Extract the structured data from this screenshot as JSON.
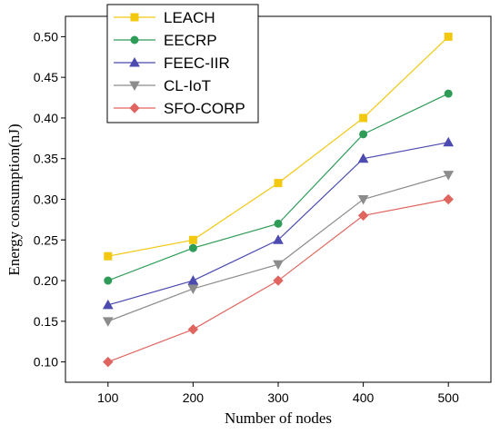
{
  "chart_data": {
    "type": "line",
    "xlabel": "Number of nodes",
    "ylabel": "Energy consumption(nJ)",
    "x": [
      100,
      200,
      300,
      400,
      500
    ],
    "xlim": [
      50,
      550
    ],
    "ylim": [
      0.075,
      0.525
    ],
    "xticks": [
      100,
      200,
      300,
      400,
      500
    ],
    "yticks": [
      0.1,
      0.15,
      0.2,
      0.25,
      0.3,
      0.35,
      0.4,
      0.45,
      0.5
    ],
    "grid": false,
    "legend_position": "top-left",
    "series": [
      {
        "name": "LEACH",
        "values": [
          0.23,
          0.25,
          0.32,
          0.4,
          0.5
        ],
        "color": "#f2c811",
        "marker": "square"
      },
      {
        "name": "EECRP",
        "values": [
          0.2,
          0.24,
          0.27,
          0.38,
          0.43
        ],
        "color": "#2e9b57",
        "marker": "circle"
      },
      {
        "name": "FEEC-IIR",
        "values": [
          0.17,
          0.2,
          0.25,
          0.35,
          0.37
        ],
        "color": "#4b4bb0",
        "marker": "triangle-up"
      },
      {
        "name": "CL-IoT",
        "values": [
          0.15,
          0.19,
          0.22,
          0.3,
          0.33
        ],
        "color": "#8c8c8c",
        "marker": "triangle-down"
      },
      {
        "name": "SFO-CORP",
        "values": [
          0.1,
          0.14,
          0.2,
          0.28,
          0.3
        ],
        "color": "#e0655f",
        "marker": "diamond"
      }
    ]
  }
}
